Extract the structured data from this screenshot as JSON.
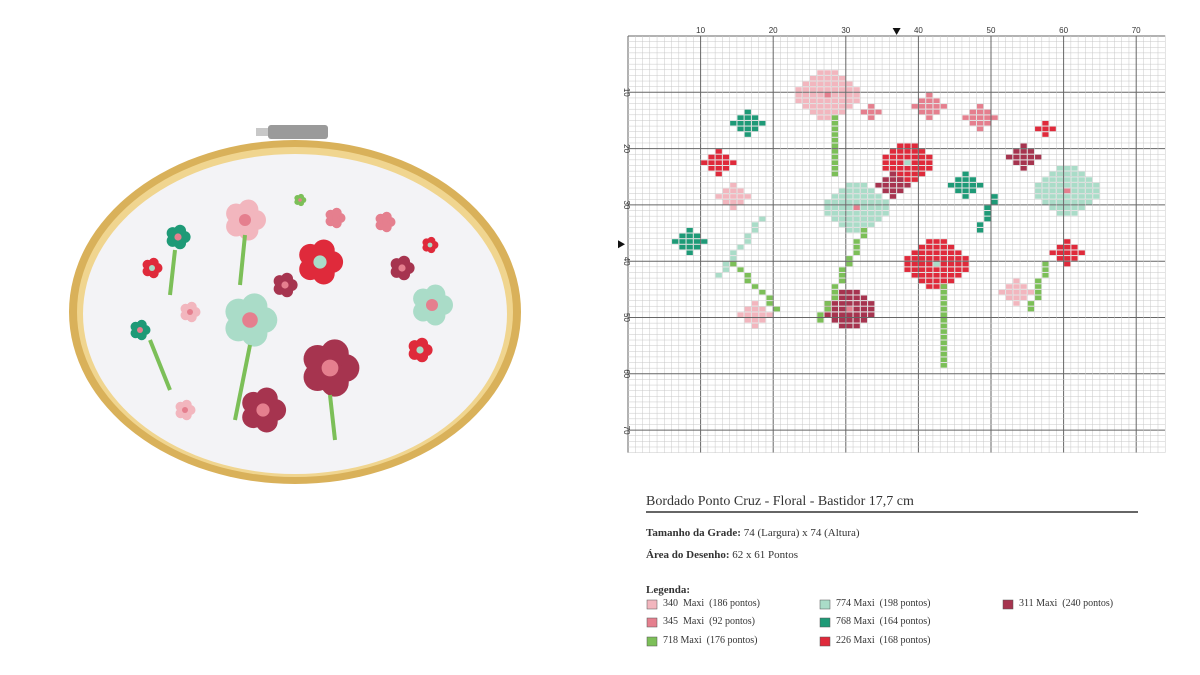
{
  "grid": {
    "top_labels": [
      "10",
      "20",
      "30",
      "40",
      "50",
      "60",
      "70"
    ],
    "left_labels": [
      "10",
      "20",
      "30",
      "40",
      "50",
      "60",
      "70"
    ]
  },
  "title": "Bordado Ponto Cruz - Floral - Bastidor 17,7 cm",
  "grid_size": {
    "label": "Tamanho da Grade:",
    "value": "74 (Largura) x 74 (Altura)"
  },
  "design_area": {
    "label": "Área do Desenho:",
    "value": "62 x 61 Pontos"
  },
  "legend": {
    "title": "Legenda:",
    "items": [
      {
        "color": "#f2b6be",
        "text": "340  Maxi  (186 pontos)"
      },
      {
        "color": "#e57f8e",
        "text": "345  Maxi  (92 pontos)"
      },
      {
        "color": "#7cbf58",
        "text": "718 Maxi  (176 pontos)"
      },
      {
        "color": "#aadcc8",
        "text": "774 Maxi  (198 pontos)"
      },
      {
        "color": "#1e9a77",
        "text": "768 Maxi  (164 pontos)"
      },
      {
        "color": "#df2a3b",
        "text": "226 Maxi  (168 pontos)"
      },
      {
        "color": "#a6344f",
        "text": "311 Maxi  (240 pontos)"
      }
    ]
  }
}
